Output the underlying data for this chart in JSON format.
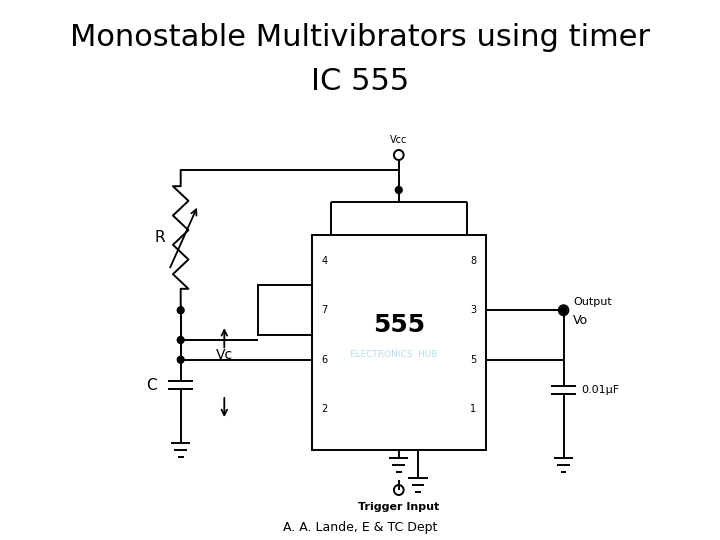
{
  "title_line1": "Monostable Multivibrators using timer",
  "title_line2": "IC 555",
  "title_fontsize": 22,
  "subtitle": "A. A. Lande, E & TC Dept",
  "subtitle_fontsize": 9,
  "watermark": "ELECTRONICS  HUB",
  "watermark_color": "#a8d8ea",
  "bg_color": "#ffffff",
  "line_color": "#000000"
}
